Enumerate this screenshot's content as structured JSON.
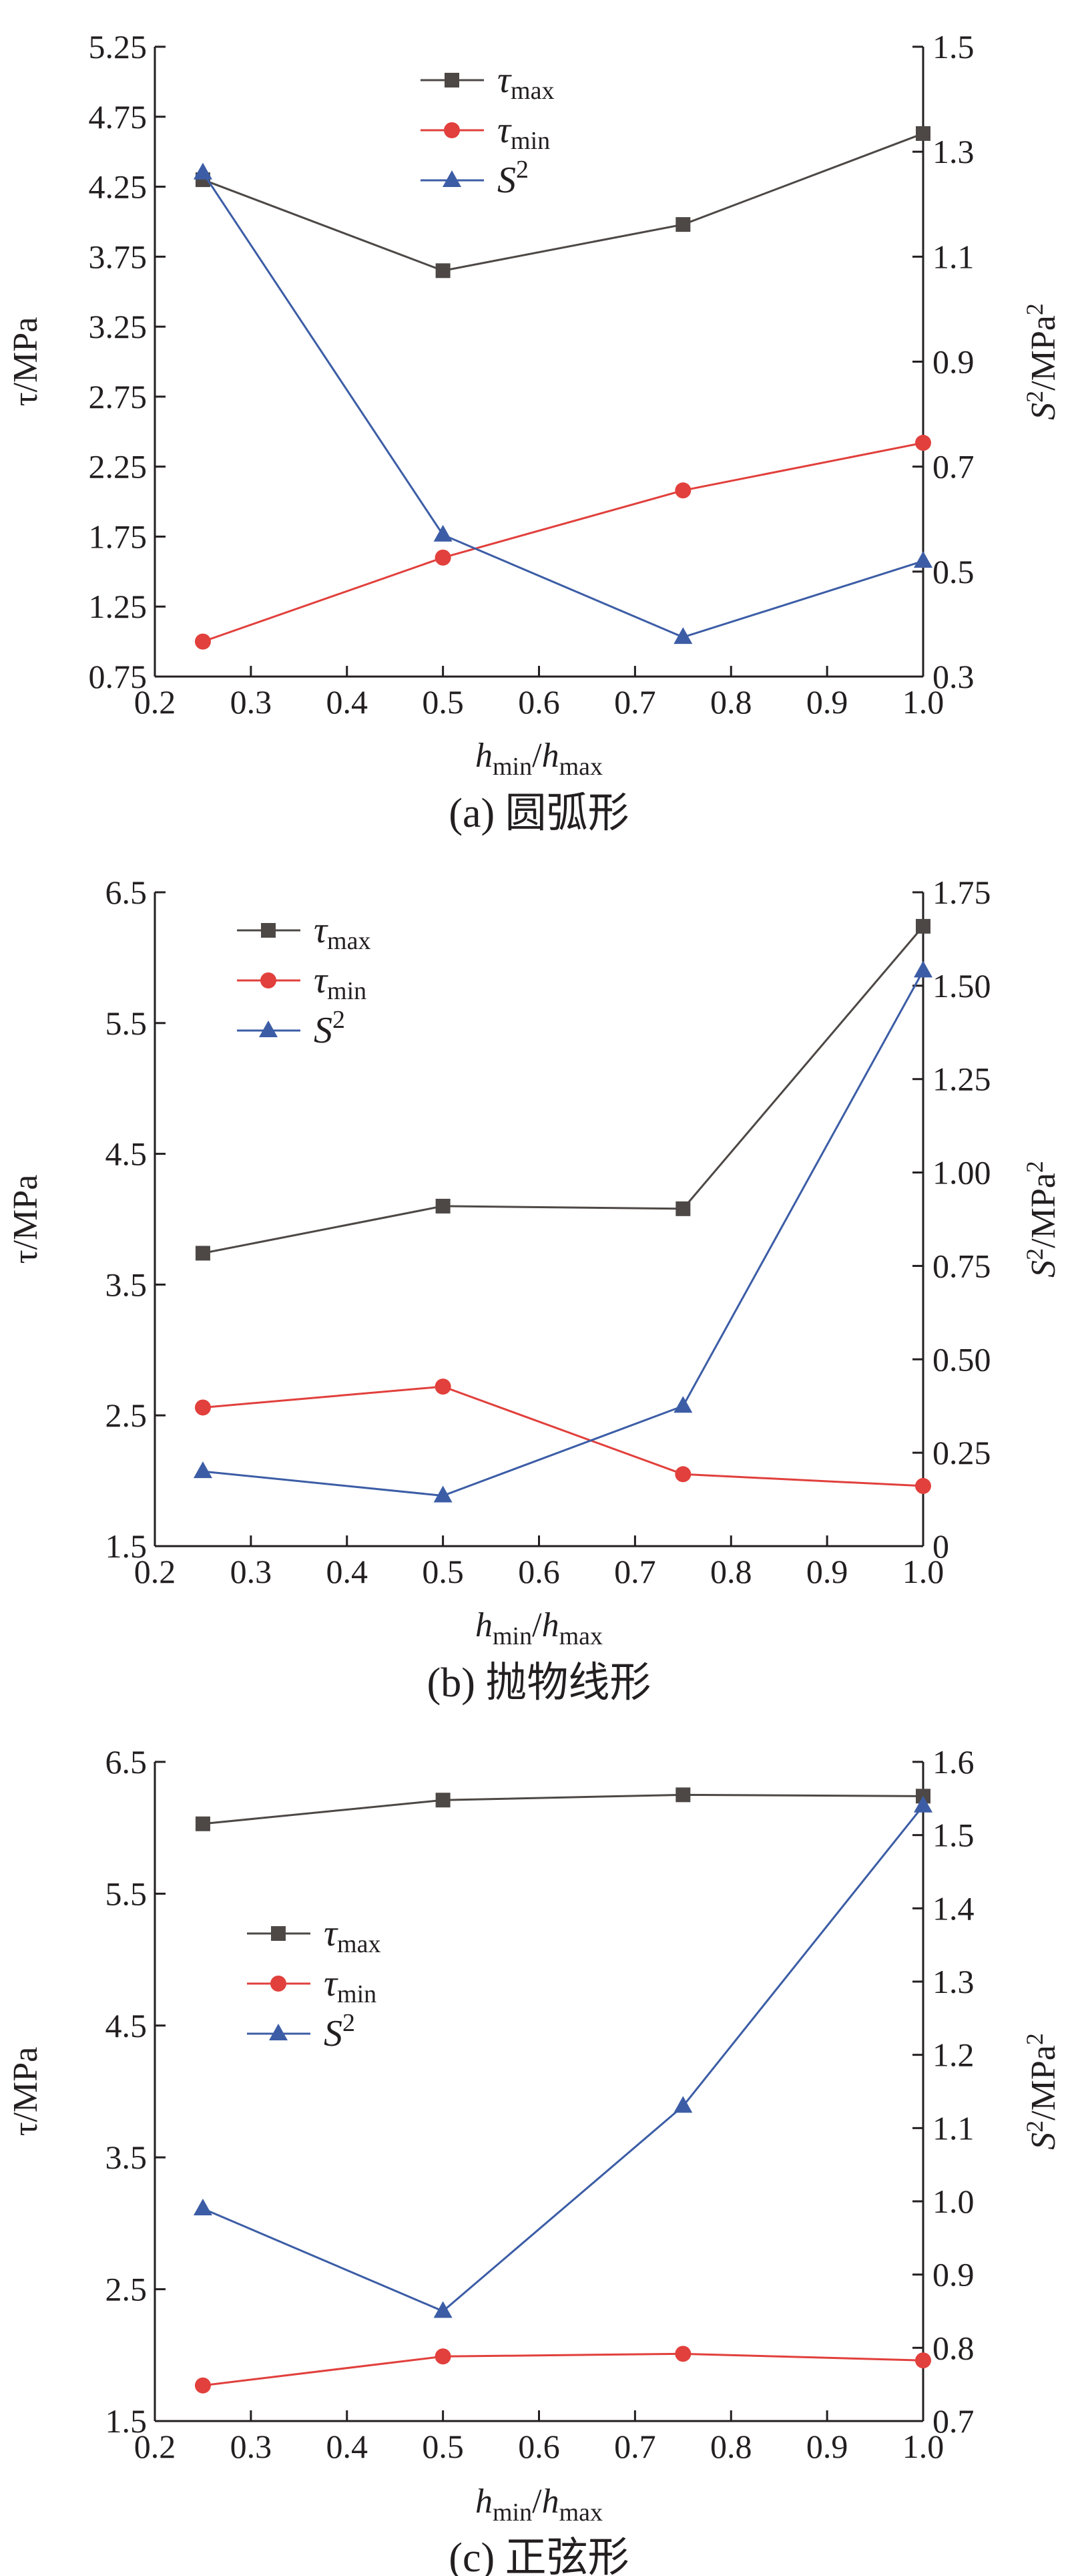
{
  "chart_data": [
    {
      "type": "line",
      "caption": "(a) 圆弧形",
      "x": [
        0.25,
        0.5,
        0.75,
        1.0
      ],
      "xlim": [
        0.2,
        1.0
      ],
      "xticks": [
        "0.2",
        "0.3",
        "0.4",
        "0.5",
        "0.6",
        "0.7",
        "0.8",
        "0.9",
        "1.0"
      ],
      "xlabel": {
        "main1": "h",
        "sub1": "min",
        "sep": "/",
        "main2": "h",
        "sub2": "max"
      },
      "ylabel_left": {
        "main": "τ/MPa"
      },
      "ylabel_right": {
        "main": "S",
        "sup": "2",
        "rest": "/MPa",
        "sup2": "2"
      },
      "ylim_left": [
        0.75,
        5.25
      ],
      "ylim_right": [
        0.3,
        1.5
      ],
      "yticks_left": [
        "0.75",
        "1.25",
        "1.75",
        "2.25",
        "2.75",
        "3.25",
        "3.75",
        "4.25",
        "4.75",
        "5.25"
      ],
      "yticks_right": [
        "0.3",
        "0.5",
        "0.7",
        "0.9",
        "1.1",
        "1.3",
        "1.5"
      ],
      "legend_position": "top-center",
      "series": [
        {
          "name": "τmax",
          "label_main": "τ",
          "label_sub": "max",
          "axis": "left",
          "marker": "square",
          "color": "#4d4845",
          "values": [
            4.3,
            3.65,
            3.98,
            4.63
          ]
        },
        {
          "name": "τmin",
          "label_main": "τ",
          "label_sub": "min",
          "axis": "left",
          "marker": "circle",
          "color": "#e1403c",
          "values": [
            1.0,
            1.6,
            2.08,
            2.42
          ]
        },
        {
          "name": "S2",
          "label_main": "S",
          "label_sup": "2",
          "axis": "right",
          "marker": "triangle",
          "color": "#3c5da6",
          "values": [
            1.26,
            0.57,
            0.375,
            0.52
          ]
        }
      ]
    },
    {
      "type": "line",
      "caption": "(b) 抛物线形",
      "x": [
        0.25,
        0.5,
        0.75,
        1.0
      ],
      "xlim": [
        0.2,
        1.0
      ],
      "xticks": [
        "0.2",
        "0.3",
        "0.4",
        "0.5",
        "0.6",
        "0.7",
        "0.8",
        "0.9",
        "1.0"
      ],
      "xlabel": {
        "main1": "h",
        "sub1": "min",
        "sep": "/",
        "main2": "h",
        "sub2": "max"
      },
      "ylabel_left": {
        "main": "τ/MPa"
      },
      "ylabel_right": {
        "main": "S",
        "sup": "2",
        "rest": "/MPa",
        "sup2": "2"
      },
      "ylim_left": [
        1.5,
        6.5
      ],
      "ylim_right": [
        0,
        1.75
      ],
      "yticks_left": [
        "1.5",
        "2.5",
        "3.5",
        "4.5",
        "5.5",
        "6.5"
      ],
      "yticks_right": [
        "0",
        "0.25",
        "0.50",
        "0.75",
        "1.00",
        "1.25",
        "1.50",
        "1.75"
      ],
      "legend_position": "top-left",
      "series": [
        {
          "name": "τmax",
          "label_main": "τ",
          "label_sub": "max",
          "axis": "left",
          "marker": "square",
          "color": "#4d4845",
          "values": [
            3.74,
            4.1,
            4.08,
            6.24
          ]
        },
        {
          "name": "τmin",
          "label_main": "τ",
          "label_sub": "min",
          "axis": "left",
          "marker": "circle",
          "color": "#e1403c",
          "values": [
            2.56,
            2.72,
            2.05,
            1.96
          ]
        },
        {
          "name": "S2",
          "label_main": "S",
          "label_sup": "2",
          "axis": "right",
          "marker": "triangle",
          "color": "#3c5da6",
          "values": [
            0.2,
            0.135,
            0.375,
            1.54
          ]
        }
      ]
    },
    {
      "type": "line",
      "caption": "(c) 正弦形",
      "x": [
        0.25,
        0.5,
        0.75,
        1.0
      ],
      "xlim": [
        0.2,
        1.0
      ],
      "xticks": [
        "0.2",
        "0.3",
        "0.4",
        "0.5",
        "0.6",
        "0.7",
        "0.8",
        "0.9",
        "1.0"
      ],
      "xlabel": {
        "main1": "h",
        "sub1": "min",
        "sep": "/",
        "main2": "h",
        "sub2": "max"
      },
      "ylabel_left": {
        "main": "τ/MPa"
      },
      "ylabel_right": {
        "main": "S",
        "sup": "2",
        "rest": "/MPa",
        "sup2": "2"
      },
      "ylim_left": [
        1.5,
        6.5
      ],
      "ylim_right": [
        0.7,
        1.6
      ],
      "yticks_left": [
        "1.5",
        "2.5",
        "3.5",
        "4.5",
        "5.5",
        "6.5"
      ],
      "yticks_right": [
        "0.7",
        "0.8",
        "0.9",
        "1.0",
        "1.1",
        "1.2",
        "1.3",
        "1.4",
        "1.5",
        "1.6"
      ],
      "legend_position": "middle-left",
      "series": [
        {
          "name": "τmax",
          "label_main": "τ",
          "label_sub": "max",
          "axis": "left",
          "marker": "square",
          "color": "#4d4845",
          "values": [
            6.03,
            6.21,
            6.25,
            6.24
          ]
        },
        {
          "name": "τmin",
          "label_main": "τ",
          "label_sub": "min",
          "axis": "left",
          "marker": "circle",
          "color": "#e1403c",
          "values": [
            1.77,
            1.99,
            2.01,
            1.96
          ]
        },
        {
          "name": "S2",
          "label_main": "S",
          "label_sup": "2",
          "axis": "right",
          "marker": "triangle",
          "color": "#3c5da6",
          "values": [
            0.99,
            0.85,
            1.13,
            1.54
          ]
        }
      ]
    }
  ]
}
